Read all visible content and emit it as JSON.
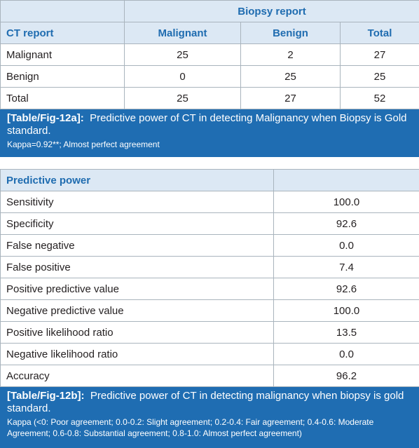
{
  "table_a": {
    "spanning_header": "Biopsy report",
    "row_header": "CT report",
    "columns": [
      "Malignant",
      "Benign",
      "Total"
    ],
    "rows": [
      [
        "Malignant",
        "25",
        "2",
        "27"
      ],
      [
        "Benign",
        "0",
        "25",
        "25"
      ],
      [
        "Total",
        "25",
        "27",
        "52"
      ]
    ],
    "caption": {
      "label": "[Table/Fig-12a]:",
      "text": "Predictive power of CT in detecting Malignancy when Biopsy is Gold standard.",
      "note": "Kappa=0.92**; Almost perfect agreement"
    }
  },
  "table_b": {
    "header": "Predictive power",
    "rows": [
      [
        "Sensitivity",
        "100.0"
      ],
      [
        "Specificity",
        "92.6"
      ],
      [
        "False negative",
        "0.0"
      ],
      [
        "False positive",
        "7.4"
      ],
      [
        "Positive predictive value",
        "92.6"
      ],
      [
        "Negative predictive value",
        "100.0"
      ],
      [
        "Positive likelihood ratio",
        "13.5"
      ],
      [
        "Negative likelihood ratio",
        "0.0"
      ],
      [
        "Accuracy",
        "96.2"
      ]
    ],
    "caption": {
      "label": "[Table/Fig-12b]:",
      "text": "Predictive power of CT in detecting malignancy when biopsy is gold standard.",
      "note": "Kappa (<0: Poor agreement; 0.0-0.2: Slight agreement; 0.2-0.4: Fair agreement; 0.4-0.6: Moderate Agreement; 0.6-0.8: Substantial agreement; 0.8-1.0: Almost perfect agreement)"
    }
  }
}
